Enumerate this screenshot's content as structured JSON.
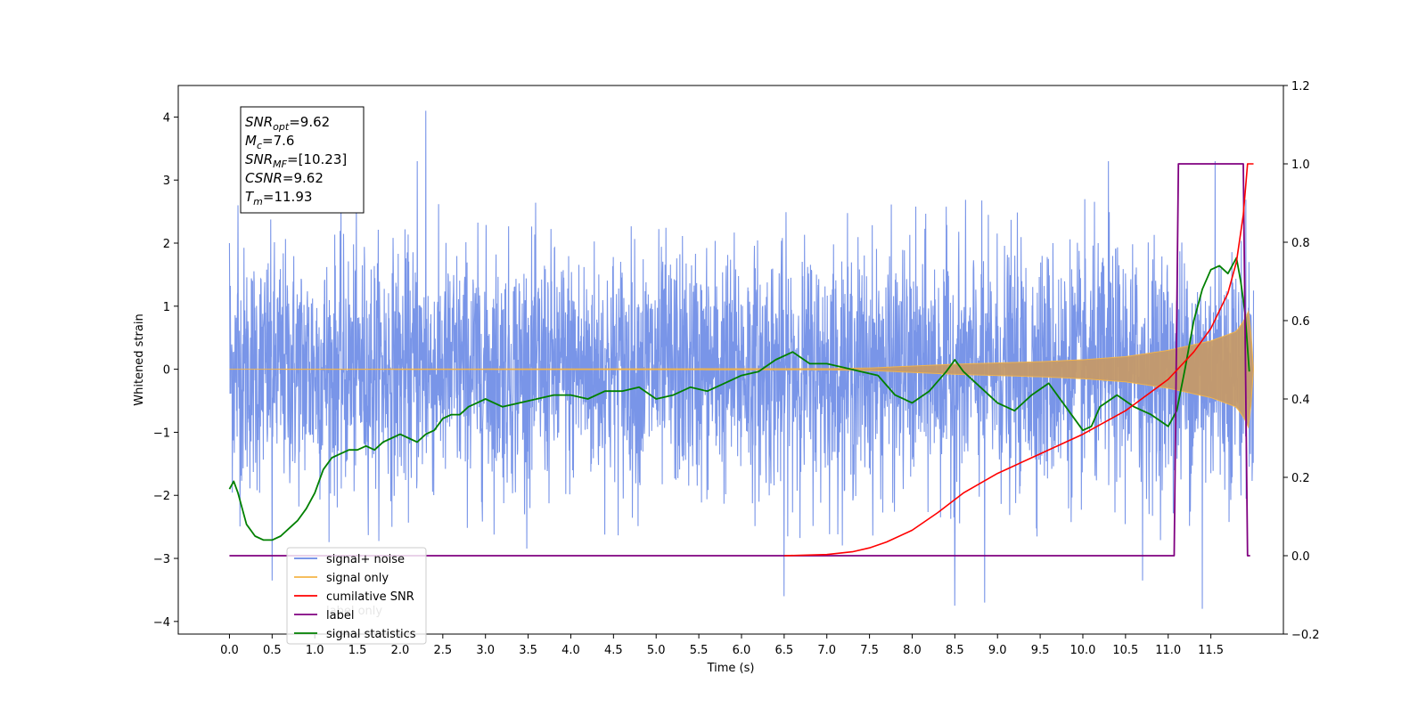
{
  "chart_data": {
    "type": "line",
    "xlabel": "Time (s)",
    "ylabel": "Whitened strain",
    "xlim": [
      -0.6,
      12.35
    ],
    "ylim": [
      -4.2,
      4.5
    ],
    "y2lim": [
      -0.2,
      1.2
    ],
    "x_ticks": [
      "0.0",
      "0.5",
      "1.0",
      "1.5",
      "2.0",
      "2.5",
      "3.0",
      "3.5",
      "4.0",
      "4.5",
      "5.0",
      "5.5",
      "6.0",
      "6.5",
      "7.0",
      "7.5",
      "8.0",
      "8.5",
      "9.0",
      "9.5",
      "10.0",
      "10.5",
      "11.0",
      "11.5"
    ],
    "y_ticks": [
      "−4",
      "−3",
      "−2",
      "−1",
      "0",
      "1",
      "2",
      "3",
      "4"
    ],
    "y2_ticks": [
      "−0.2",
      "0.0",
      "0.2",
      "0.4",
      "0.6",
      "0.8",
      "1.0",
      "1.2"
    ],
    "annotation": {
      "lines": [
        {
          "sym": "SNR",
          "sub": "opt",
          "value": "=9.62"
        },
        {
          "sym": "M",
          "sub": "c",
          "value": "=7.6"
        },
        {
          "sym": "SNR",
          "sub": "MF",
          "value": "=[10.23]"
        },
        {
          "sym": "CSNR",
          "sub": "",
          "value": "=9.62"
        },
        {
          "sym": "T",
          "sub": "m",
          "value": "=11.93"
        }
      ]
    },
    "legend": {
      "position": "lower-left",
      "entries": [
        {
          "label": "signal+ noise",
          "color": "#6a8ae6"
        },
        {
          "label": "signal only",
          "color": "#f5b547"
        },
        {
          "label": "cumilative SNR",
          "color": "#ff0000"
        },
        {
          "label": "label",
          "color": "#800080"
        },
        {
          "label": "signal statistics",
          "color": "#008000"
        }
      ],
      "occluded_labels": [
        "label only"
      ]
    },
    "series": [
      {
        "name": "signal+ noise",
        "axis": "left",
        "color": "#6a8ae6",
        "description_of_envelope": "dense noise roughly between -2.5 and 2.5 with spikes to 4.1 at x=2.3 and -3.8 at x=11.4",
        "t_start": 0.0,
        "t_end": 12.0,
        "peaks_high": [
          [
            0.0,
            2.0
          ],
          [
            0.1,
            2.6
          ],
          [
            2.3,
            4.1
          ],
          [
            2.2,
            3.3
          ],
          [
            10.3,
            3.3
          ],
          [
            11.55,
            3.3
          ]
        ],
        "peaks_low": [
          [
            0.5,
            -3.35
          ],
          [
            6.5,
            -3.6
          ],
          [
            8.5,
            -3.75
          ],
          [
            8.85,
            -3.7
          ],
          [
            10.7,
            -3.35
          ],
          [
            11.4,
            -3.8
          ]
        ]
      },
      {
        "name": "signal only",
        "axis": "left",
        "color": "#c59a6a",
        "envelope": [
          [
            0.0,
            0.0
          ],
          [
            7.0,
            0.01
          ],
          [
            7.5,
            0.02
          ],
          [
            8.0,
            0.05
          ],
          [
            8.5,
            0.08
          ],
          [
            9.0,
            0.1
          ],
          [
            9.5,
            0.12
          ],
          [
            10.0,
            0.15
          ],
          [
            10.5,
            0.2
          ],
          [
            11.0,
            0.3
          ],
          [
            11.5,
            0.45
          ],
          [
            11.8,
            0.6
          ],
          [
            11.9,
            0.8
          ],
          [
            11.95,
            0.95
          ],
          [
            12.0,
            0.0
          ]
        ]
      },
      {
        "name": "cumilative SNR",
        "axis": "right",
        "color": "#ff0000",
        "x": [
          6.5,
          7.0,
          7.3,
          7.5,
          7.7,
          8.0,
          8.3,
          8.6,
          9.0,
          9.5,
          10.0,
          10.5,
          11.0,
          11.3,
          11.5,
          11.7,
          11.8,
          11.88,
          11.93,
          12.0
        ],
        "y": [
          0.0,
          0.003,
          0.01,
          0.02,
          0.035,
          0.065,
          0.11,
          0.16,
          0.21,
          0.26,
          0.31,
          0.37,
          0.45,
          0.52,
          0.58,
          0.67,
          0.75,
          0.87,
          1.0,
          1.0
        ]
      },
      {
        "name": "label",
        "axis": "right",
        "color": "#800080",
        "x": [
          0.0,
          11.07,
          11.12,
          11.88,
          11.93,
          11.96
        ],
        "y": [
          0.0,
          0.0,
          1.0,
          1.0,
          0.0,
          0.0
        ]
      },
      {
        "name": "signal statistics",
        "axis": "right",
        "color": "#008000",
        "x": [
          0.0,
          0.05,
          0.1,
          0.2,
          0.3,
          0.4,
          0.5,
          0.6,
          0.7,
          0.8,
          0.9,
          1.0,
          1.1,
          1.2,
          1.3,
          1.4,
          1.5,
          1.6,
          1.7,
          1.8,
          1.9,
          2.0,
          2.1,
          2.2,
          2.3,
          2.4,
          2.5,
          2.6,
          2.7,
          2.8,
          2.9,
          3.0,
          3.2,
          3.4,
          3.6,
          3.8,
          4.0,
          4.2,
          4.4,
          4.6,
          4.8,
          5.0,
          5.2,
          5.4,
          5.6,
          5.8,
          6.0,
          6.2,
          6.4,
          6.6,
          6.8,
          7.0,
          7.2,
          7.4,
          7.6,
          7.8,
          8.0,
          8.2,
          8.4,
          8.5,
          8.6,
          8.8,
          9.0,
          9.2,
          9.4,
          9.6,
          9.8,
          10.0,
          10.1,
          10.2,
          10.4,
          10.6,
          10.8,
          11.0,
          11.1,
          11.2,
          11.3,
          11.4,
          11.5,
          11.6,
          11.7,
          11.8,
          11.85,
          11.9,
          11.95
        ],
        "y": [
          0.17,
          0.19,
          0.16,
          0.08,
          0.05,
          0.04,
          0.04,
          0.05,
          0.07,
          0.09,
          0.12,
          0.16,
          0.22,
          0.25,
          0.26,
          0.27,
          0.27,
          0.28,
          0.27,
          0.29,
          0.3,
          0.31,
          0.3,
          0.29,
          0.31,
          0.32,
          0.35,
          0.36,
          0.36,
          0.38,
          0.39,
          0.4,
          0.38,
          0.39,
          0.4,
          0.41,
          0.41,
          0.4,
          0.42,
          0.42,
          0.43,
          0.4,
          0.41,
          0.43,
          0.42,
          0.44,
          0.46,
          0.47,
          0.5,
          0.52,
          0.49,
          0.49,
          0.48,
          0.47,
          0.46,
          0.41,
          0.39,
          0.42,
          0.47,
          0.5,
          0.47,
          0.43,
          0.39,
          0.37,
          0.41,
          0.44,
          0.38,
          0.32,
          0.33,
          0.38,
          0.41,
          0.38,
          0.36,
          0.33,
          0.37,
          0.48,
          0.6,
          0.68,
          0.73,
          0.74,
          0.72,
          0.76,
          0.7,
          0.62,
          0.47
        ]
      }
    ]
  }
}
